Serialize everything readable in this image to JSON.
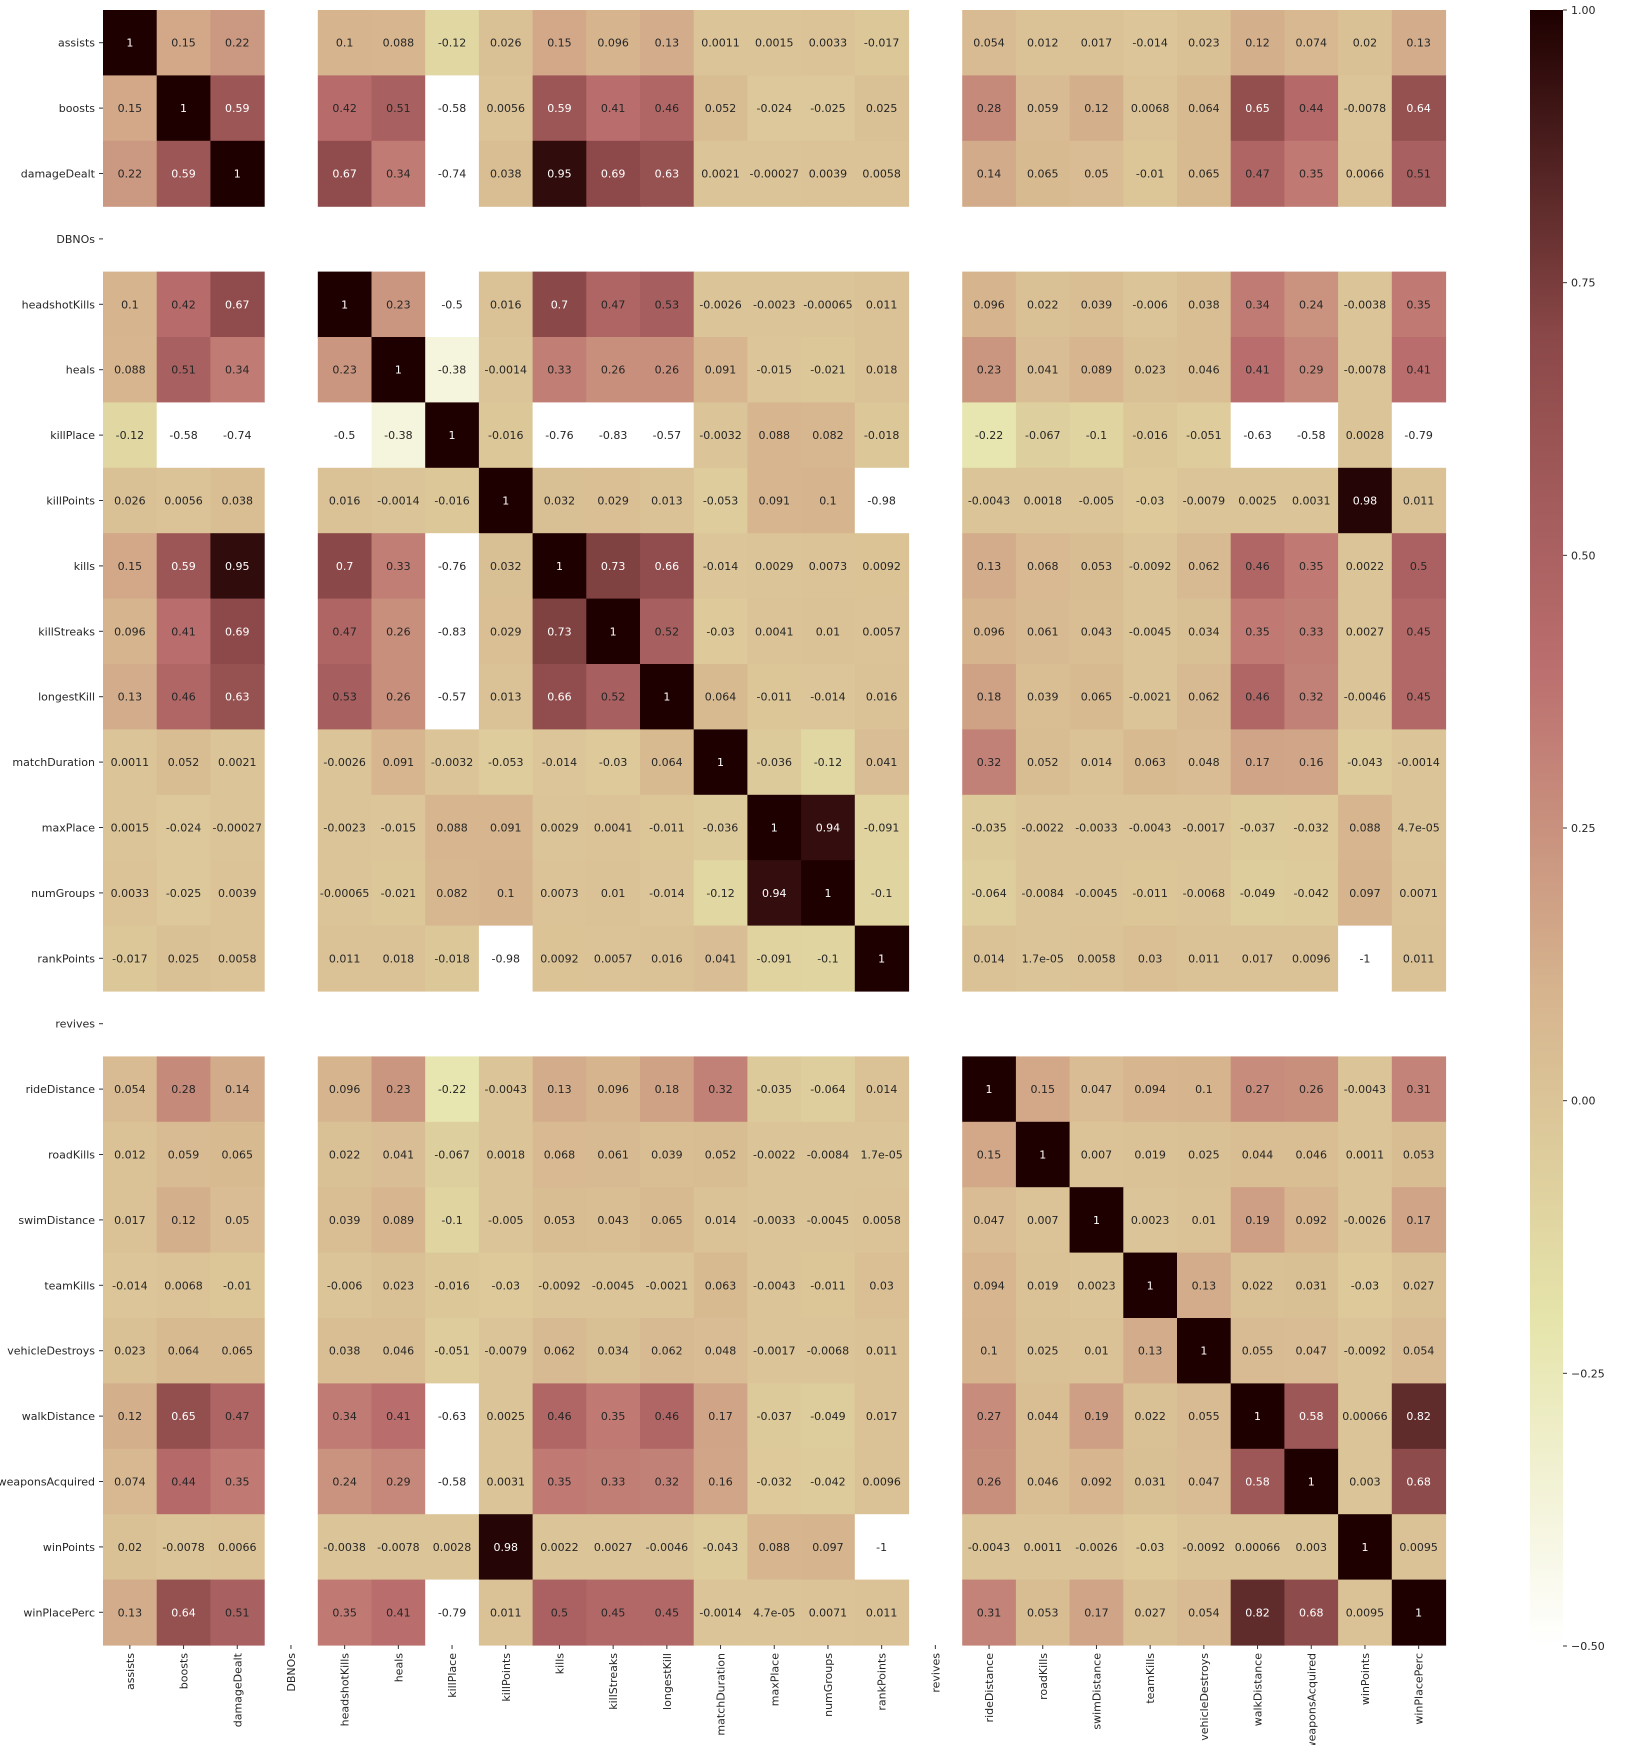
{
  "chart_data": {
    "type": "heatmap",
    "title": "",
    "xlabel": "",
    "ylabel": "",
    "labels": [
      "assists",
      "boosts",
      "damageDealt",
      "DBNOs",
      "headshotKills",
      "heals",
      "killPlace",
      "killPoints",
      "kills",
      "killStreaks",
      "longestKill",
      "matchDuration",
      "maxPlace",
      "numGroups",
      "rankPoints",
      "revives",
      "rideDistance",
      "roadKills",
      "swimDistance",
      "teamKills",
      "vehicleDestroys",
      "walkDistance",
      "weaponsAcquired",
      "winPoints",
      "winPlacePerc"
    ],
    "values": [
      [
        "1",
        "0.15",
        "0.22",
        null,
        "0.1",
        "0.088",
        "-0.12",
        "0.026",
        "0.15",
        "0.096",
        "0.13",
        "0.0011",
        "0.0015",
        "0.0033",
        "-0.017",
        null,
        "0.054",
        "0.012",
        "0.017",
        "-0.014",
        "0.023",
        "0.12",
        "0.074",
        "0.02",
        "0.13"
      ],
      [
        "0.15",
        "1",
        "0.59",
        null,
        "0.42",
        "0.51",
        "-0.58",
        "0.0056",
        "0.59",
        "0.41",
        "0.46",
        "0.052",
        "-0.024",
        "-0.025",
        "0.025",
        null,
        "0.28",
        "0.059",
        "0.12",
        "0.0068",
        "0.064",
        "0.65",
        "0.44",
        "-0.0078",
        "0.64"
      ],
      [
        "0.22",
        "0.59",
        "1",
        null,
        "0.67",
        "0.34",
        "-0.74",
        "0.038",
        "0.95",
        "0.69",
        "0.63",
        "0.0021",
        "-0.00027",
        "0.0039",
        "0.0058",
        null,
        "0.14",
        "0.065",
        "0.05",
        "-0.01",
        "0.065",
        "0.47",
        "0.35",
        "0.0066",
        "0.51"
      ],
      [
        null,
        null,
        null,
        null,
        null,
        null,
        null,
        null,
        null,
        null,
        null,
        null,
        null,
        null,
        null,
        null,
        null,
        null,
        null,
        null,
        null,
        null,
        null,
        null,
        null
      ],
      [
        "0.1",
        "0.42",
        "0.67",
        null,
        "1",
        "0.23",
        "-0.5",
        "0.016",
        "0.7",
        "0.47",
        "0.53",
        "-0.0026",
        "-0.0023",
        "-0.00065",
        "0.011",
        null,
        "0.096",
        "0.022",
        "0.039",
        "-0.006",
        "0.038",
        "0.34",
        "0.24",
        "-0.0038",
        "0.35"
      ],
      [
        "0.088",
        "0.51",
        "0.34",
        null,
        "0.23",
        "1",
        "-0.38",
        "-0.0014",
        "0.33",
        "0.26",
        "0.26",
        "0.091",
        "-0.015",
        "-0.021",
        "0.018",
        null,
        "0.23",
        "0.041",
        "0.089",
        "0.023",
        "0.046",
        "0.41",
        "0.29",
        "-0.0078",
        "0.41"
      ],
      [
        "-0.12",
        "-0.58",
        "-0.74",
        null,
        "-0.5",
        "-0.38",
        "1",
        "-0.016",
        "-0.76",
        "-0.83",
        "-0.57",
        "-0.0032",
        "0.088",
        "0.082",
        "-0.018",
        null,
        "-0.22",
        "-0.067",
        "-0.1",
        "-0.016",
        "-0.051",
        "-0.63",
        "-0.58",
        "0.0028",
        "-0.79"
      ],
      [
        "0.026",
        "0.0056",
        "0.038",
        null,
        "0.016",
        "-0.0014",
        "-0.016",
        "1",
        "0.032",
        "0.029",
        "0.013",
        "-0.053",
        "0.091",
        "0.1",
        "-0.98",
        null,
        "-0.0043",
        "0.0018",
        "-0.005",
        "-0.03",
        "-0.0079",
        "0.0025",
        "0.0031",
        "0.98",
        "0.011"
      ],
      [
        "0.15",
        "0.59",
        "0.95",
        null,
        "0.7",
        "0.33",
        "-0.76",
        "0.032",
        "1",
        "0.73",
        "0.66",
        "-0.014",
        "0.0029",
        "0.0073",
        "0.0092",
        null,
        "0.13",
        "0.068",
        "0.053",
        "-0.0092",
        "0.062",
        "0.46",
        "0.35",
        "0.0022",
        "0.5"
      ],
      [
        "0.096",
        "0.41",
        "0.69",
        null,
        "0.47",
        "0.26",
        "-0.83",
        "0.029",
        "0.73",
        "1",
        "0.52",
        "-0.03",
        "0.0041",
        "0.01",
        "0.0057",
        null,
        "0.096",
        "0.061",
        "0.043",
        "-0.0045",
        "0.034",
        "0.35",
        "0.33",
        "0.0027",
        "0.45"
      ],
      [
        "0.13",
        "0.46",
        "0.63",
        null,
        "0.53",
        "0.26",
        "-0.57",
        "0.013",
        "0.66",
        "0.52",
        "1",
        "0.064",
        "-0.011",
        "-0.014",
        "0.016",
        null,
        "0.18",
        "0.039",
        "0.065",
        "-0.0021",
        "0.062",
        "0.46",
        "0.32",
        "-0.0046",
        "0.45"
      ],
      [
        "0.0011",
        "0.052",
        "0.0021",
        null,
        "-0.0026",
        "0.091",
        "-0.0032",
        "-0.053",
        "-0.014",
        "-0.03",
        "0.064",
        "1",
        "-0.036",
        "-0.12",
        "0.041",
        null,
        "0.32",
        "0.052",
        "0.014",
        "0.063",
        "0.048",
        "0.17",
        "0.16",
        "-0.043",
        "-0.0014"
      ],
      [
        "0.0015",
        "-0.024",
        "-0.00027",
        null,
        "-0.0023",
        "-0.015",
        "0.088",
        "0.091",
        "0.0029",
        "0.0041",
        "-0.011",
        "-0.036",
        "1",
        "0.94",
        "-0.091",
        null,
        "-0.035",
        "-0.0022",
        "-0.0033",
        "-0.0043",
        "-0.0017",
        "-0.037",
        "-0.032",
        "0.088",
        "4.7e-05"
      ],
      [
        "0.0033",
        "-0.025",
        "0.0039",
        null,
        "-0.00065",
        "-0.021",
        "0.082",
        "0.1",
        "0.0073",
        "0.01",
        "-0.014",
        "-0.12",
        "0.94",
        "1",
        "-0.1",
        null,
        "-0.064",
        "-0.0084",
        "-0.0045",
        "-0.011",
        "-0.0068",
        "-0.049",
        "-0.042",
        "0.097",
        "0.0071"
      ],
      [
        "-0.017",
        "0.025",
        "0.0058",
        null,
        "0.011",
        "0.018",
        "-0.018",
        "-0.98",
        "0.0092",
        "0.0057",
        "0.016",
        "0.041",
        "-0.091",
        "-0.1",
        "1",
        null,
        "0.014",
        "1.7e-05",
        "0.0058",
        "0.03",
        "0.011",
        "0.017",
        "0.0096",
        "-1",
        "0.011"
      ],
      [
        null,
        null,
        null,
        null,
        null,
        null,
        null,
        null,
        null,
        null,
        null,
        null,
        null,
        null,
        null,
        null,
        null,
        null,
        null,
        null,
        null,
        null,
        null,
        null,
        null
      ],
      [
        "0.054",
        "0.28",
        "0.14",
        null,
        "0.096",
        "0.23",
        "-0.22",
        "-0.0043",
        "0.13",
        "0.096",
        "0.18",
        "0.32",
        "-0.035",
        "-0.064",
        "0.014",
        null,
        "1",
        "0.15",
        "0.047",
        "0.094",
        "0.1",
        "0.27",
        "0.26",
        "-0.0043",
        "0.31"
      ],
      [
        "0.012",
        "0.059",
        "0.065",
        null,
        "0.022",
        "0.041",
        "-0.067",
        "0.0018",
        "0.068",
        "0.061",
        "0.039",
        "0.052",
        "-0.0022",
        "-0.0084",
        "1.7e-05",
        null,
        "0.15",
        "1",
        "0.007",
        "0.019",
        "0.025",
        "0.044",
        "0.046",
        "0.0011",
        "0.053"
      ],
      [
        "0.017",
        "0.12",
        "0.05",
        null,
        "0.039",
        "0.089",
        "-0.1",
        "-0.005",
        "0.053",
        "0.043",
        "0.065",
        "0.014",
        "-0.0033",
        "-0.0045",
        "0.0058",
        null,
        "0.047",
        "0.007",
        "1",
        "0.0023",
        "0.01",
        "0.19",
        "0.092",
        "-0.0026",
        "0.17"
      ],
      [
        "-0.014",
        "0.0068",
        "-0.01",
        null,
        "-0.006",
        "0.023",
        "-0.016",
        "-0.03",
        "-0.0092",
        "-0.0045",
        "-0.0021",
        "0.063",
        "-0.0043",
        "-0.011",
        "0.03",
        null,
        "0.094",
        "0.019",
        "0.0023",
        "1",
        "0.13",
        "0.022",
        "0.031",
        "-0.03",
        "0.027"
      ],
      [
        "0.023",
        "0.064",
        "0.065",
        null,
        "0.038",
        "0.046",
        "-0.051",
        "-0.0079",
        "0.062",
        "0.034",
        "0.062",
        "0.048",
        "-0.0017",
        "-0.0068",
        "0.011",
        null,
        "0.1",
        "0.025",
        "0.01",
        "0.13",
        "1",
        "0.055",
        "0.047",
        "-0.0092",
        "0.054"
      ],
      [
        "0.12",
        "0.65",
        "0.47",
        null,
        "0.34",
        "0.41",
        "-0.63",
        "0.0025",
        "0.46",
        "0.35",
        "0.46",
        "0.17",
        "-0.037",
        "-0.049",
        "0.017",
        null,
        "0.27",
        "0.044",
        "0.19",
        "0.022",
        "0.055",
        "1",
        "0.58",
        "0.00066",
        "0.82"
      ],
      [
        "0.074",
        "0.44",
        "0.35",
        null,
        "0.24",
        "0.29",
        "-0.58",
        "0.0031",
        "0.35",
        "0.33",
        "0.32",
        "0.16",
        "-0.032",
        "-0.042",
        "0.0096",
        null,
        "0.26",
        "0.046",
        "0.092",
        "0.031",
        "0.047",
        "0.58",
        "1",
        "0.003",
        "0.68"
      ],
      [
        "0.02",
        "-0.0078",
        "0.0066",
        null,
        "-0.0038",
        "-0.0078",
        "0.0028",
        "0.98",
        "0.0022",
        "0.0027",
        "-0.0046",
        "-0.043",
        "0.088",
        "0.097",
        "-1",
        null,
        "-0.0043",
        "0.0011",
        "-0.0026",
        "-0.03",
        "-0.0092",
        "0.00066",
        "0.003",
        "1",
        "0.0095"
      ],
      [
        "0.13",
        "0.64",
        "0.51",
        null,
        "0.35",
        "0.41",
        "-0.79",
        "0.011",
        "0.5",
        "0.45",
        "0.45",
        "-0.0014",
        "4.7e-05",
        "0.0071",
        "0.011",
        null,
        "0.31",
        "0.053",
        "0.17",
        "0.027",
        "0.054",
        "0.82",
        "0.68",
        "0.0095",
        "1"
      ]
    ],
    "colorbar": {
      "min": -0.5,
      "max": 1.0,
      "ticks": [
        "1.00",
        "0.75",
        "0.50",
        "0.25",
        "0.00",
        "-0.25",
        "-0.50"
      ],
      "tick_values": [
        1.0,
        0.75,
        0.5,
        0.25,
        0.0,
        -0.25,
        -0.5
      ],
      "colormap": [
        "#ffffff",
        "#e5e4aa",
        "#d6b48e",
        "#bb6e6e",
        "#8b4848",
        "#1e0000"
      ]
    },
    "annotations": true,
    "grid": false
  }
}
